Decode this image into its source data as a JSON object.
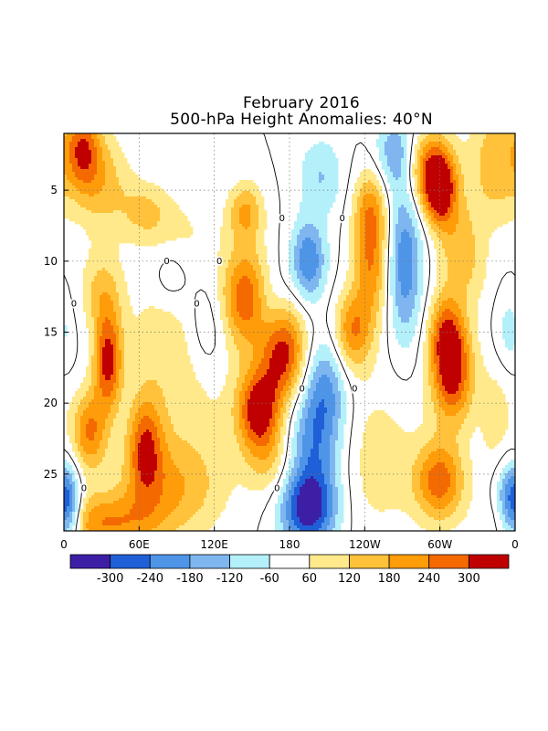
{
  "chart_data": {
    "type": "heatmap",
    "title": "February 2016",
    "subtitle": "500-hPa Height Anomalies: 40°N",
    "x_ticks": [
      "0",
      "60E",
      "120E",
      "180",
      "120W",
      "60W",
      "0"
    ],
    "x_range_deg_east": [
      0,
      360
    ],
    "y_ticks": [
      5,
      10,
      15,
      20,
      25
    ],
    "y_range_day": [
      1,
      29
    ],
    "y_axis_inverted": true,
    "grid": "dotted",
    "contour_line_label": "0",
    "colorbar": {
      "labels": [
        "-300",
        "-240",
        "-180",
        "-120",
        "-60",
        "60",
        "120",
        "180",
        "240",
        "300"
      ],
      "colors": [
        "#3d1fa6",
        "#1f5fd8",
        "#4e95e8",
        "#7fb6f0",
        "#b4f0fa",
        "#ffffff",
        "#ffe98a",
        "#ffc23a",
        "#ff9c0a",
        "#f46a00",
        "#c00000"
      ]
    },
    "features": [
      {
        "lon": 15,
        "day": 2,
        "value": 250,
        "sx": 10,
        "sy": 2
      },
      {
        "lon": 30,
        "day": 4.5,
        "value": 150,
        "sx": 16,
        "sy": 2.5
      },
      {
        "lon": 65,
        "day": 6.5,
        "value": 120,
        "sx": 14,
        "sy": 1.5
      },
      {
        "lon": 95,
        "day": 8,
        "value": 60,
        "sx": 22,
        "sy": 2
      },
      {
        "lon": 35,
        "day": 17,
        "value": 320,
        "sx": 8,
        "sy": 2.5
      },
      {
        "lon": 30,
        "day": 12,
        "value": 130,
        "sx": 12,
        "sy": 2
      },
      {
        "lon": 20,
        "day": 22,
        "value": 240,
        "sx": 10,
        "sy": 2
      },
      {
        "lon": 65,
        "day": 23,
        "value": 250,
        "sx": 10,
        "sy": 2.5
      },
      {
        "lon": 85,
        "day": 26,
        "value": 170,
        "sx": 30,
        "sy": 2.5
      },
      {
        "lon": 30,
        "day": 28.5,
        "value": 220,
        "sx": 30,
        "sy": 1.5
      },
      {
        "lon": 75,
        "day": 15,
        "value": 60,
        "sx": 20,
        "sy": 3
      },
      {
        "lon": 115,
        "day": 15,
        "value": -90,
        "sx": 12,
        "sy": 2.5
      },
      {
        "lon": 85,
        "day": 11,
        "value": -70,
        "sx": 10,
        "sy": 1.5
      },
      {
        "lon": 145,
        "day": 12.5,
        "value": 280,
        "sx": 14,
        "sy": 2.5
      },
      {
        "lon": 175,
        "day": 16.5,
        "value": 330,
        "sx": 13,
        "sy": 2.5
      },
      {
        "lon": 155,
        "day": 20.5,
        "value": 330,
        "sx": 12,
        "sy": 2
      },
      {
        "lon": 165,
        "day": 24,
        "value": 120,
        "sx": 14,
        "sy": 2
      },
      {
        "lon": 100,
        "day": 19,
        "value": 80,
        "sx": 30,
        "sy": 4
      },
      {
        "lon": 145,
        "day": 6.5,
        "value": 180,
        "sx": 10,
        "sy": 1.5
      },
      {
        "lon": 165,
        "day": 13,
        "value": -90,
        "sx": 10,
        "sy": 2
      },
      {
        "lon": 195,
        "day": 10,
        "value": -240,
        "sx": 10,
        "sy": 2
      },
      {
        "lon": 205,
        "day": 4,
        "value": -120,
        "sx": 13,
        "sy": 2
      },
      {
        "lon": 210,
        "day": 18.5,
        "value": -150,
        "sx": 12,
        "sy": 2.5
      },
      {
        "lon": 200,
        "day": 22.5,
        "value": -220,
        "sx": 16,
        "sy": 3
      },
      {
        "lon": 195,
        "day": 27.5,
        "value": -330,
        "sx": 16,
        "sy": 2
      },
      {
        "lon": 230,
        "day": 15,
        "value": 230,
        "sx": 11,
        "sy": 2
      },
      {
        "lon": 245,
        "day": 10,
        "value": 230,
        "sx": 10,
        "sy": 3
      },
      {
        "lon": 245,
        "day": 6,
        "value": 150,
        "sx": 10,
        "sy": 2
      },
      {
        "lon": 265,
        "day": 2.5,
        "value": -180,
        "sx": 12,
        "sy": 2
      },
      {
        "lon": 272,
        "day": 10,
        "value": -230,
        "sx": 10,
        "sy": 4
      },
      {
        "lon": 290,
        "day": 3.5,
        "value": 250,
        "sx": 14,
        "sy": 2
      },
      {
        "lon": 300,
        "day": 5,
        "value": 320,
        "sx": 9,
        "sy": 1.8
      },
      {
        "lon": 315,
        "day": 9,
        "value": 150,
        "sx": 12,
        "sy": 2.5
      },
      {
        "lon": 305,
        "day": 15,
        "value": 220,
        "sx": 10,
        "sy": 2
      },
      {
        "lon": 310,
        "day": 18,
        "value": 320,
        "sx": 12,
        "sy": 2.5
      },
      {
        "lon": 300,
        "day": 25.5,
        "value": 270,
        "sx": 14,
        "sy": 2
      },
      {
        "lon": 250,
        "day": 24,
        "value": 90,
        "sx": 25,
        "sy": 4
      },
      {
        "lon": 345,
        "day": 3,
        "value": 170,
        "sx": 15,
        "sy": 3
      },
      {
        "lon": 355,
        "day": 15,
        "value": -90,
        "sx": 8,
        "sy": 2
      },
      {
        "lon": 355,
        "day": 27,
        "value": -230,
        "sx": 8,
        "sy": 2
      },
      {
        "lon": 5,
        "day": 27.5,
        "value": -230,
        "sx": 7,
        "sy": 2
      },
      {
        "lon": 345,
        "day": 21,
        "value": 90,
        "sx": 10,
        "sy": 3
      },
      {
        "lon": 330,
        "day": 11,
        "value": 40,
        "sx": 10,
        "sy": 2
      }
    ]
  }
}
